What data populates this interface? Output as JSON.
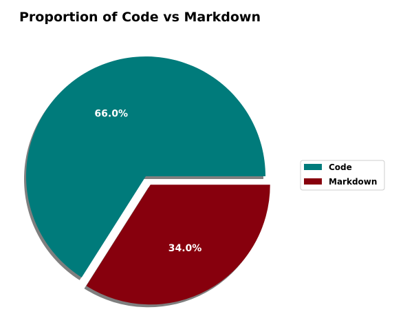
{
  "chart_data": {
    "type": "pie",
    "title": "Proportion of Code vs Markdown",
    "categories": [
      "Code",
      "Markdown"
    ],
    "values": [
      66.0,
      34.0
    ],
    "labels": [
      "66.0%",
      "34.0%"
    ],
    "colors": [
      "#007b7b",
      "#87000d"
    ],
    "exploded": [
      false,
      true
    ],
    "shadow": true,
    "legend": {
      "placement": "right",
      "entries": [
        "Code",
        "Markdown"
      ]
    }
  }
}
